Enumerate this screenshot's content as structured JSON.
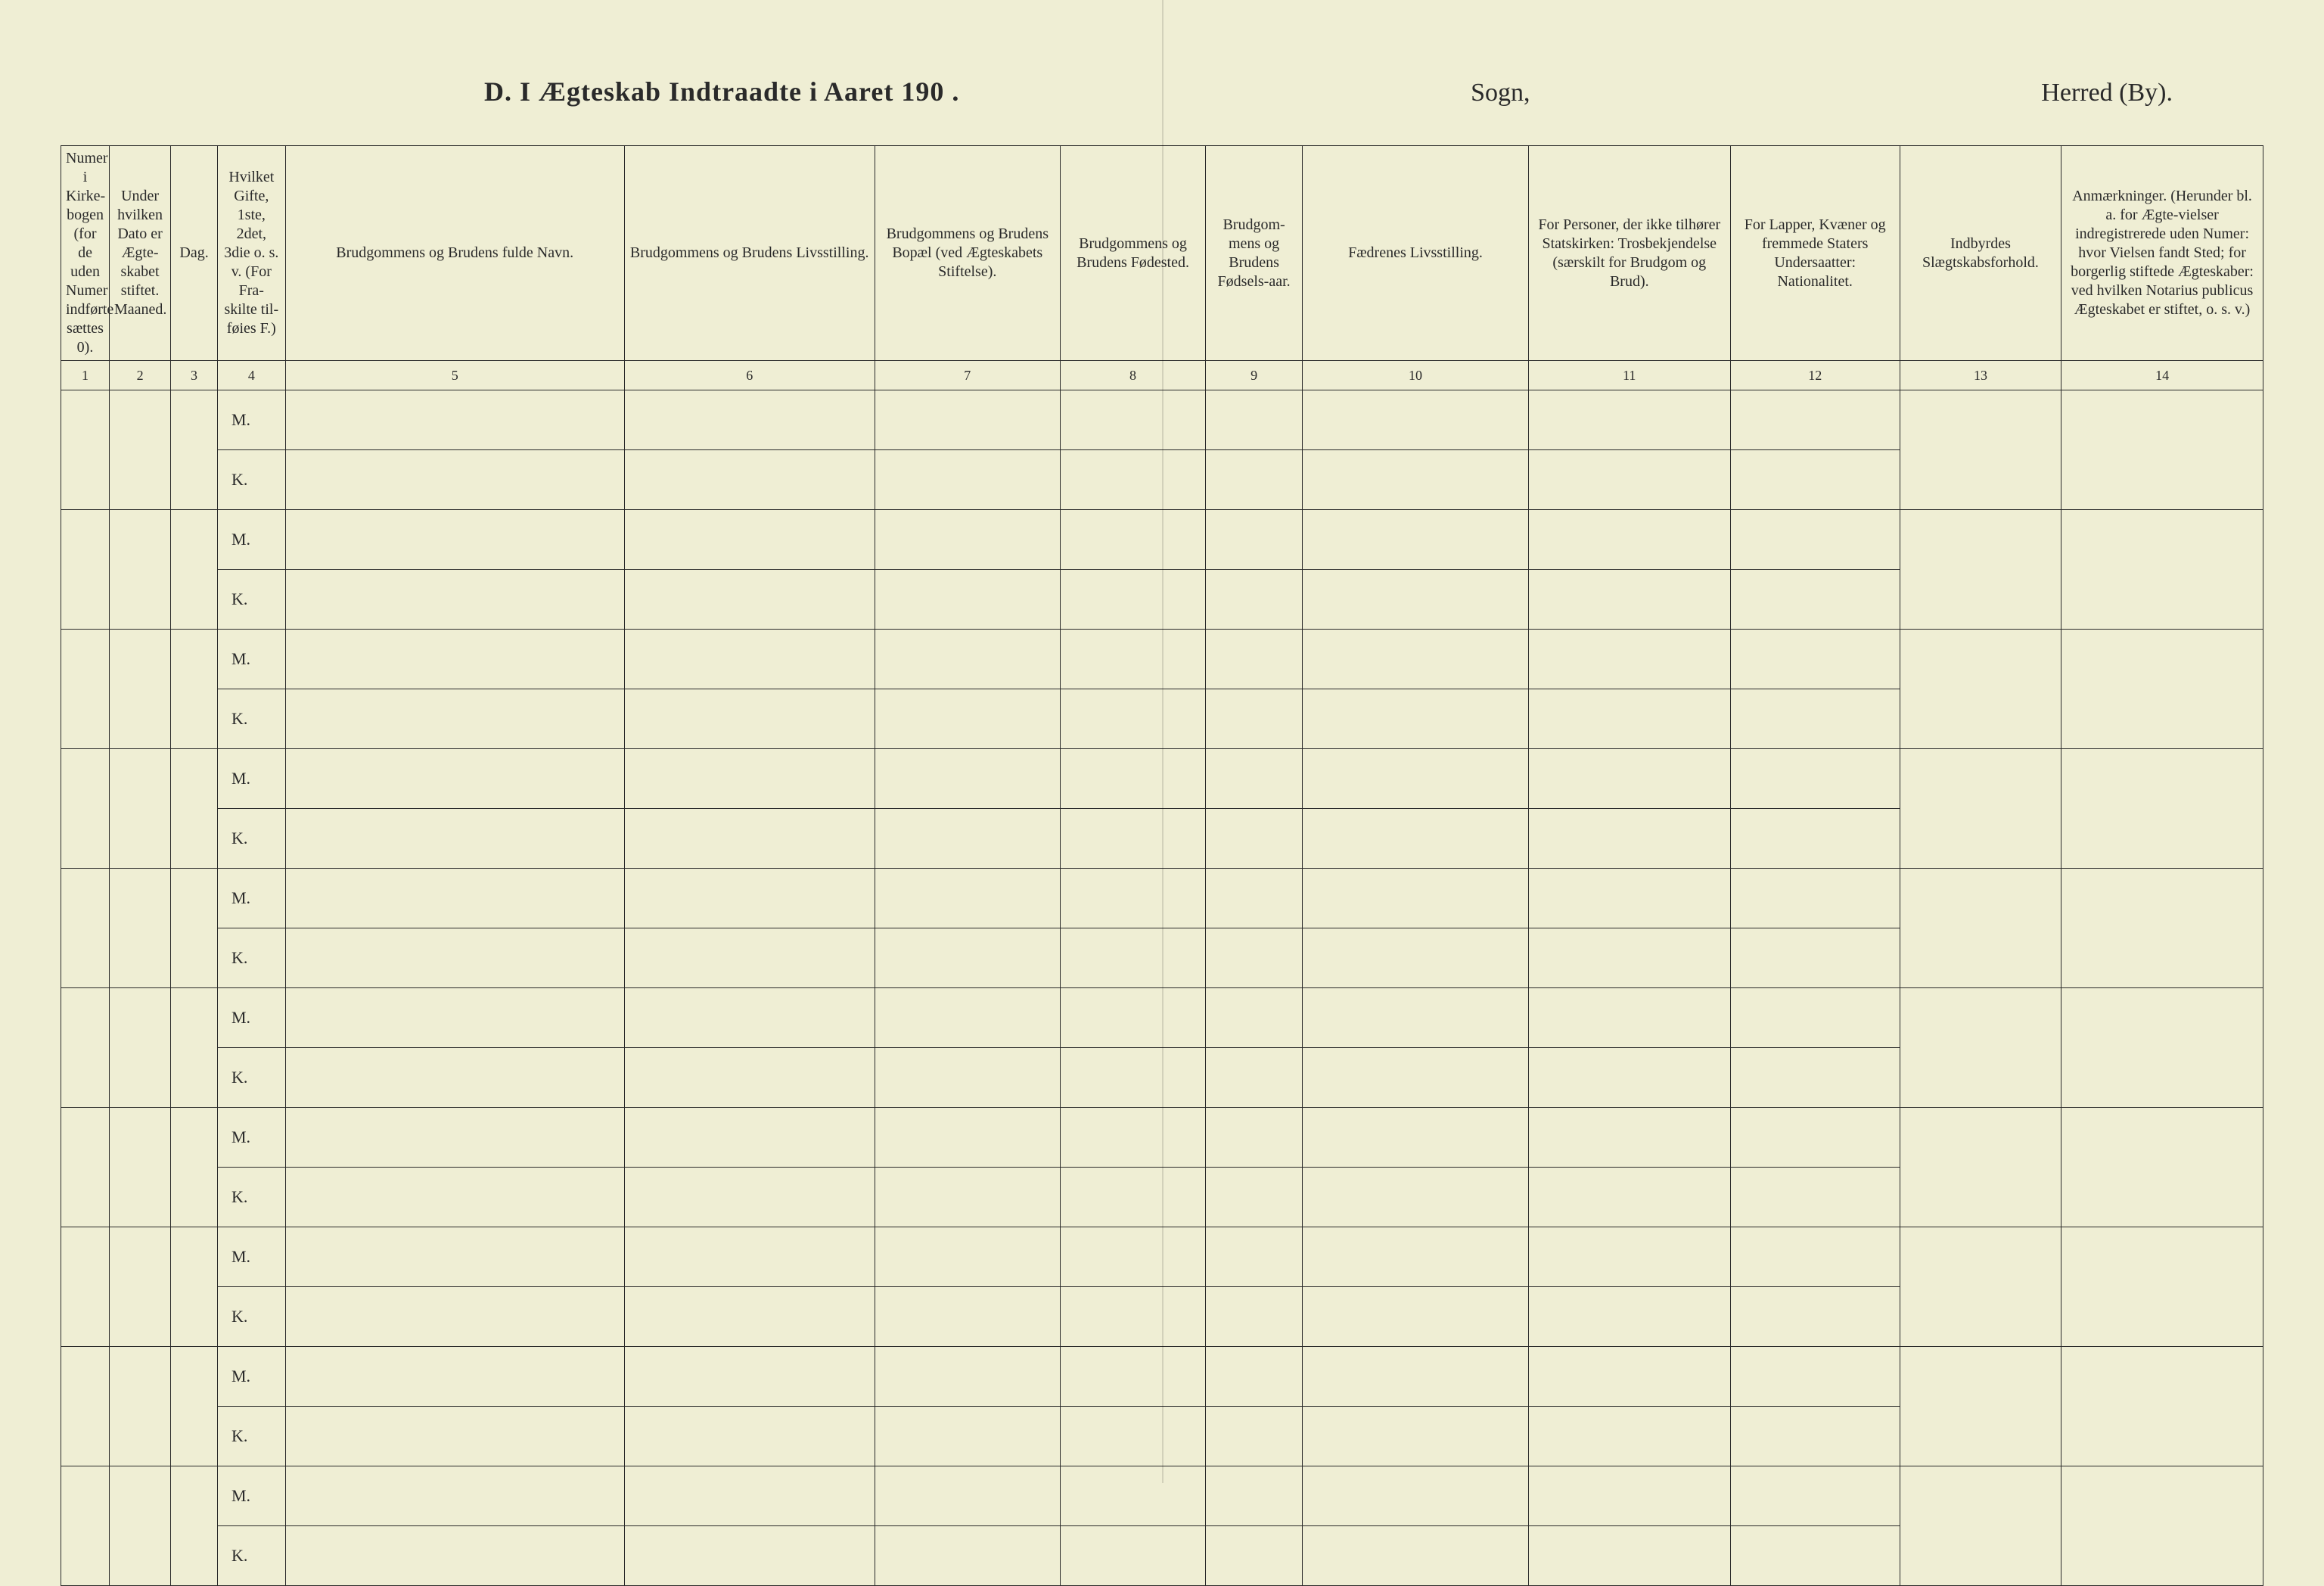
{
  "title": {
    "left": "D.  I Ægteskab Indtraadte i Aaret 190  .",
    "mid": "Sogn,",
    "right": "Herred (By)."
  },
  "columns": [
    {
      "num": "1",
      "header": "Numer i Kirke-bogen (for de uden Numer indførte sættes 0)."
    },
    {
      "num": "2",
      "header": "Under hvilken Dato er Ægte-skabet stiftet.\nMaaned."
    },
    {
      "num": "3",
      "header": "Dag."
    },
    {
      "num": "4",
      "header": "Hvilket Gifte, 1ste, 2det, 3die o. s. v. (For Fra-skilte til-føies F.)"
    },
    {
      "num": "5",
      "header": "Brudgommens og Brudens fulde Navn."
    },
    {
      "num": "6",
      "header": "Brudgommens og Brudens Livsstilling."
    },
    {
      "num": "7",
      "header": "Brudgommens og Brudens Bopæl (ved Ægteskabets Stiftelse)."
    },
    {
      "num": "8",
      "header": "Brudgommens og Brudens Fødested."
    },
    {
      "num": "9",
      "header": "Brudgom-mens og Brudens Fødsels-aar."
    },
    {
      "num": "10",
      "header": "Fædrenes Livsstilling."
    },
    {
      "num": "11",
      "header": "For Personer, der ikke tilhører Statskirken: Trosbekjendelse (særskilt for Brudgom og Brud)."
    },
    {
      "num": "12",
      "header": "For Lapper, Kvæner og fremmede Staters Undersaatter: Nationalitet."
    },
    {
      "num": "13",
      "header": "Indbyrdes Slægtskabsforhold."
    },
    {
      "num": "14",
      "header": "Anmærkninger. (Herunder bl. a. for Ægte-vielser indregistrerede uden Numer: hvor Vielsen fandt Sted; for borgerlig stiftede Ægteskaber: ved hvilken Notarius publicus Ægteskabet er stiftet, o. s. v.)"
    }
  ],
  "mk_labels": {
    "m": "M.",
    "k": "K."
  },
  "row_count": 10,
  "colors": {
    "paper": "#efeed4",
    "ink": "#2a2a2a",
    "dotted": "#666666"
  }
}
